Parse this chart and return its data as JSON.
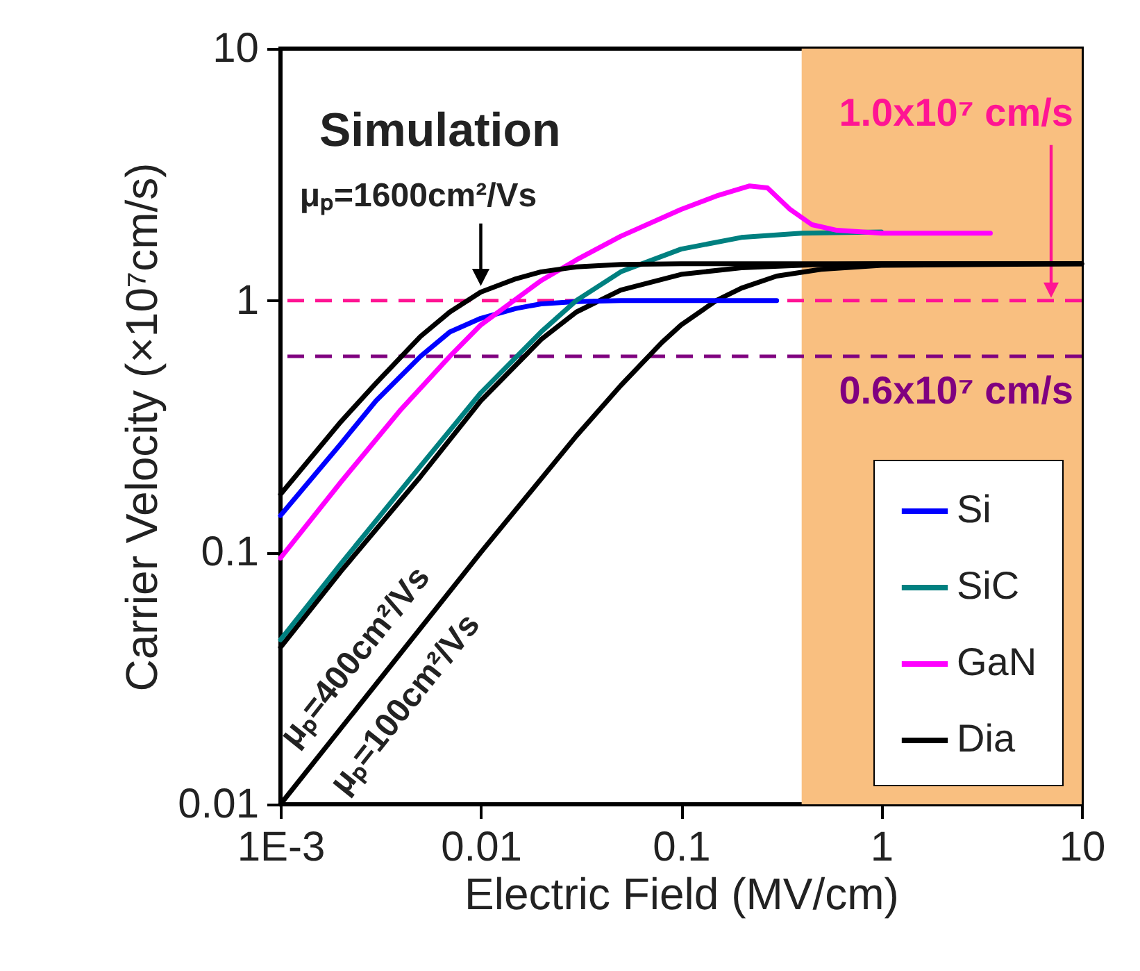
{
  "chart_data": {
    "type": "line",
    "xlabel": "Electric Field (MV/cm)",
    "ylabel": "Carrier Velocity (×10⁷cm/s)",
    "log": "xy",
    "grid": false,
    "legend": "bottom right",
    "xlim": [
      0.001,
      10
    ],
    "xticks": [
      {
        "value": 0.001,
        "label": "1E-3"
      },
      0.01,
      0.1,
      1,
      10
    ],
    "ylim": [
      0.01,
      10
    ],
    "yticks": [
      0.01,
      0.1,
      1,
      10
    ],
    "series": [
      {
        "name": "Si",
        "color": "#0000ff",
        "x": [
          0.001,
          0.002,
          0.003,
          0.005,
          0.007,
          0.01,
          0.015,
          0.02,
          0.03,
          0.05,
          0.3
        ],
        "values": [
          0.14,
          0.27,
          0.4,
          0.6,
          0.75,
          0.85,
          0.93,
          0.97,
          0.99,
          1.0,
          1.0
        ]
      },
      {
        "name": "SiC",
        "color": "#008080",
        "x": [
          0.001,
          0.002,
          0.005,
          0.01,
          0.02,
          0.03,
          0.05,
          0.1,
          0.2,
          0.4,
          1
        ],
        "values": [
          0.045,
          0.09,
          0.22,
          0.43,
          0.75,
          1.0,
          1.3,
          1.6,
          1.78,
          1.85,
          1.87
        ]
      },
      {
        "name": "GaN",
        "color": "#ff00ff",
        "x": [
          0.001,
          0.002,
          0.004,
          0.007,
          0.01,
          0.02,
          0.03,
          0.05,
          0.1,
          0.15,
          0.22,
          0.27,
          0.35,
          0.45,
          0.6,
          1,
          3.5
        ],
        "values": [
          0.095,
          0.19,
          0.37,
          0.6,
          0.8,
          1.2,
          1.45,
          1.8,
          2.3,
          2.6,
          2.85,
          2.8,
          2.3,
          2.0,
          1.9,
          1.85,
          1.85
        ]
      },
      {
        "name": "Dia",
        "color": "#000000",
        "x": [
          0.001,
          0.002,
          0.003,
          0.005,
          0.007,
          0.01,
          0.015,
          0.02,
          0.03,
          0.05,
          0.1,
          10
        ],
        "values": [
          0.17,
          0.33,
          0.47,
          0.72,
          0.9,
          1.08,
          1.22,
          1.3,
          1.36,
          1.39,
          1.4,
          1.4
        ]
      },
      {
        "color": "#000000",
        "x": [
          0.001,
          0.002,
          0.005,
          0.01,
          0.02,
          0.03,
          0.05,
          0.1,
          0.2,
          0.5,
          1,
          10
        ],
        "values": [
          0.042,
          0.084,
          0.2,
          0.4,
          0.7,
          0.9,
          1.1,
          1.27,
          1.35,
          1.39,
          1.4,
          1.4
        ]
      },
      {
        "color": "#000000",
        "x": [
          0.001,
          0.003,
          0.01,
          0.03,
          0.05,
          0.08,
          0.1,
          0.15,
          0.2,
          0.3,
          0.5,
          1,
          10
        ],
        "values": [
          0.01,
          0.03,
          0.1,
          0.29,
          0.46,
          0.68,
          0.8,
          1.0,
          1.12,
          1.25,
          1.33,
          1.38,
          1.4
        ]
      }
    ],
    "bands": [
      {
        "axis": "x",
        "from": 0.4,
        "to": 10,
        "color": "#f9bf80"
      }
    ],
    "ref_lines": [
      {
        "axis": "y",
        "value": 1.0,
        "label": "1.0x10⁷ cm/s",
        "color": "#ff1493",
        "line_style": "dashed"
      },
      {
        "axis": "y",
        "value": 0.6,
        "label": "0.6x10⁷ cm/s",
        "color": "#800080",
        "line_style": "dashed"
      }
    ],
    "annotations": [
      "Simulation",
      {
        "text": "μₚ=1600cm²/Vs",
        "x": 0.01,
        "y": 1.12
      },
      "μₚ=400cm²/Vs",
      "μₚ=100cm²/Vs"
    ]
  }
}
